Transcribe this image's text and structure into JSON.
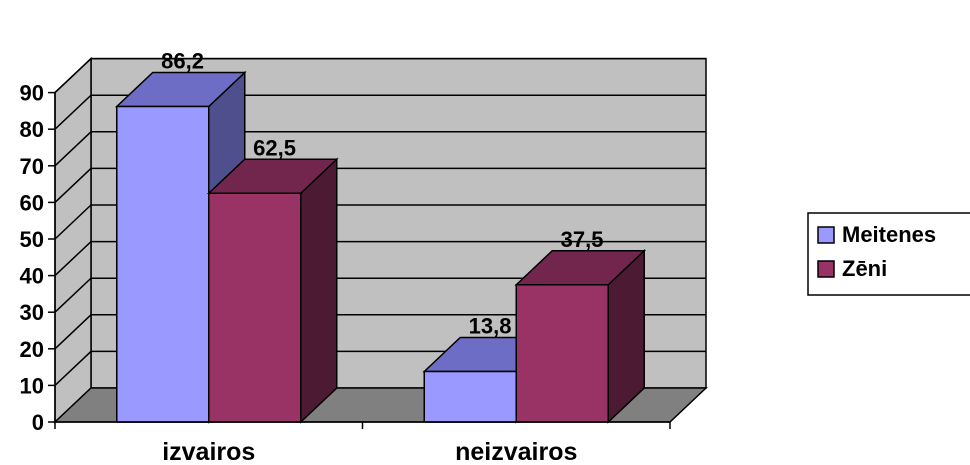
{
  "chart_data": {
    "type": "bar",
    "style": "3d-clustered-column",
    "categories": [
      "izvairos",
      "neizvairos"
    ],
    "series": [
      {
        "name": "Meitenes",
        "values": [
          86.2,
          13.8
        ],
        "value_labels": [
          "86,2",
          "13,8"
        ],
        "color": "#9999FF",
        "top_color": "#6D6DC6",
        "side_color": "#4F4F8E"
      },
      {
        "name": "Zēni",
        "values": [
          62.5,
          37.5
        ],
        "value_labels": [
          "62,5",
          "37,5"
        ],
        "color": "#993366",
        "top_color": "#73264D",
        "side_color": "#4D1A33"
      }
    ],
    "y_ticks": [
      "0",
      "10",
      "20",
      "30",
      "40",
      "50",
      "60",
      "70",
      "80",
      "90"
    ],
    "ylim": [
      0,
      90
    ],
    "grid": true,
    "legend_position": "right",
    "colors": {
      "wall": "#C0C0C0",
      "floor": "#808080",
      "grid": "#000000"
    }
  }
}
